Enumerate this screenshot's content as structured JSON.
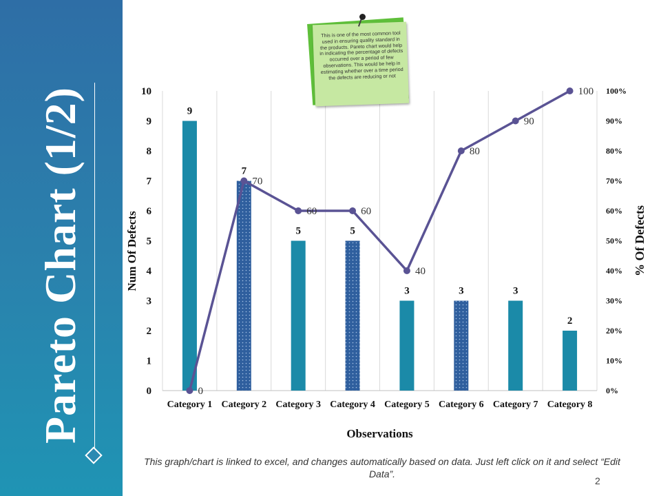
{
  "slide": {
    "title": "Pareto Chart (1/2)",
    "note": "This is one of the most common tool used in ensuring quality standard in the products. Pareto chart would help in indicating the percentage of defects occurred over a period of few observations. This would be help in estimating whether over a time period the defects are reducing or not",
    "footer": "This graph/chart is linked to excel, and changes automatically based on data. Just left click on it and select “Edit Data”.",
    "page_number": "2"
  },
  "colors": {
    "bar": "#1b8aa8",
    "bar_pattern": "#2f5f9e",
    "line": "#5a5394",
    "grid": "#d9d9d9",
    "sidebar_top": "#2e6ea6",
    "sidebar_bottom": "#1f94b4"
  },
  "chart_data": {
    "type": "bar",
    "categories": [
      "Category 1",
      "Category 2",
      "Category 3",
      "Category 4",
      "Category 5",
      "Category 6",
      "Category 7",
      "Category 8"
    ],
    "series": [
      {
        "type": "bar",
        "axis": "left",
        "values": [
          9,
          7,
          5,
          5,
          3,
          3,
          3,
          2
        ],
        "patterns": [
          "solid",
          "dotted",
          "solid",
          "dotted",
          "solid",
          "dotted",
          "solid",
          "solid"
        ]
      },
      {
        "type": "line",
        "axis": "right",
        "values": [
          0,
          70,
          60,
          60,
          40,
          80,
          90,
          100
        ]
      }
    ],
    "xlabel": "Observations",
    "ylabel": "Num Of Defects",
    "y2label": "% Of Defects",
    "ylim": [
      0,
      10
    ],
    "y2lim": [
      0,
      100
    ],
    "yticks": [
      "0",
      "1",
      "2",
      "3",
      "4",
      "5",
      "6",
      "7",
      "8",
      "9",
      "10"
    ],
    "y2ticks": [
      "0%",
      "10%",
      "20%",
      "30%",
      "40%",
      "50%",
      "60%",
      "70%",
      "80%",
      "90%",
      "100%"
    ],
    "grid": "vertical"
  }
}
